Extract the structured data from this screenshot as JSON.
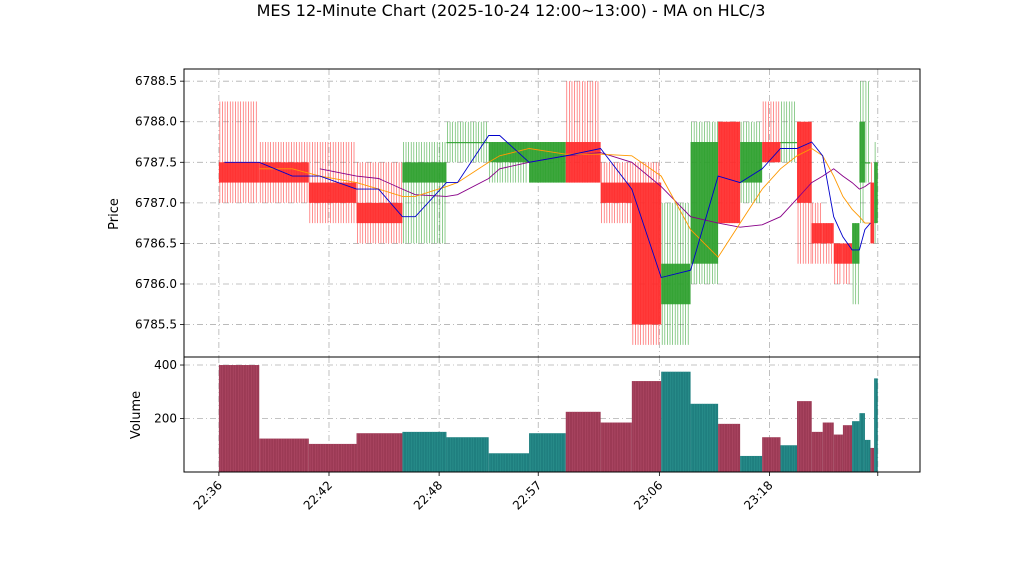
{
  "chart_data": [
    {
      "type": "candlestick",
      "title": "MES 12-Minute Chart (2025-10-24 12:00~13:00) - MA on HLC/3",
      "ylabel": "Price",
      "ylim": [
        6785.1,
        6788.65
      ],
      "yticks": [
        "6785.5",
        "6786.0",
        "6786.5",
        "6787.0",
        "6787.5",
        "6788.0",
        "6788.5"
      ],
      "grid": true,
      "colors": {
        "up": "#2ca02c",
        "down": "#ff2a2a",
        "ma_fast": "#0000cc",
        "ma_mid": "#ff9900",
        "ma_slow": "#880088"
      },
      "bars": [
        {
          "x": 0.0,
          "w": 2.2,
          "o": 6787.5,
          "h": 6788.25,
          "l": 6787.0,
          "c": 6787.25
        },
        {
          "x": 2.2,
          "w": 2.7,
          "o": 6787.5,
          "h": 6787.75,
          "l": 6787.0,
          "c": 6787.25
        },
        {
          "x": 4.9,
          "w": 2.6,
          "o": 6787.25,
          "h": 6787.75,
          "l": 6786.75,
          "c": 6787.0
        },
        {
          "x": 7.5,
          "w": 2.5,
          "o": 6787.0,
          "h": 6787.5,
          "l": 6786.5,
          "c": 6786.75
        },
        {
          "x": 10.0,
          "w": 2.4,
          "o": 6787.25,
          "h": 6787.75,
          "l": 6786.5,
          "c": 6787.5
        },
        {
          "x": 12.4,
          "w": 2.3,
          "o": 6787.75,
          "h": 6788.0,
          "l": 6787.5,
          "c": 6787.75
        },
        {
          "x": 14.7,
          "w": 2.2,
          "o": 6787.5,
          "h": 6787.75,
          "l": 6787.25,
          "c": 6787.75
        },
        {
          "x": 16.9,
          "w": 2.0,
          "o": 6787.25,
          "h": 6787.75,
          "l": 6787.25,
          "c": 6787.75
        },
        {
          "x": 18.9,
          "w": 1.9,
          "o": 6787.75,
          "h": 6788.5,
          "l": 6787.25,
          "c": 6787.25
        },
        {
          "x": 20.8,
          "w": 1.7,
          "o": 6787.25,
          "h": 6787.5,
          "l": 6786.75,
          "c": 6787.0
        },
        {
          "x": 22.5,
          "w": 1.6,
          "o": 6787.25,
          "h": 6787.5,
          "l": 6785.25,
          "c": 6785.5
        },
        {
          "x": 24.1,
          "w": 1.6,
          "o": 6785.75,
          "h": 6787.0,
          "l": 6785.25,
          "c": 6786.25
        },
        {
          "x": 25.7,
          "w": 1.5,
          "o": 6786.25,
          "h": 6788.0,
          "l": 6786.0,
          "c": 6787.75
        },
        {
          "x": 27.2,
          "w": 1.2,
          "o": 6788.0,
          "h": 6788.0,
          "l": 6786.75,
          "c": 6786.75
        },
        {
          "x": 28.4,
          "w": 1.2,
          "o": 6787.25,
          "h": 6788.0,
          "l": 6787.0,
          "c": 6787.75
        },
        {
          "x": 29.6,
          "w": 1.0,
          "o": 6787.75,
          "h": 6788.25,
          "l": 6787.5,
          "c": 6787.5
        },
        {
          "x": 30.6,
          "w": 0.9,
          "o": 6787.75,
          "h": 6788.25,
          "l": 6787.5,
          "c": 6787.75
        },
        {
          "x": 31.5,
          "w": 0.8,
          "o": 6788.0,
          "h": 6788.0,
          "l": 6786.25,
          "c": 6787.0
        },
        {
          "x": 32.3,
          "w": 0.6,
          "o": 6786.75,
          "h": 6787.0,
          "l": 6786.25,
          "c": 6786.5
        },
        {
          "x": 32.9,
          "w": 0.6,
          "o": 6786.75,
          "h": 6786.75,
          "l": 6786.25,
          "c": 6786.5
        },
        {
          "x": 33.5,
          "w": 0.5,
          "o": 6786.5,
          "h": 6786.5,
          "l": 6786.0,
          "c": 6786.25
        },
        {
          "x": 34.0,
          "w": 0.5,
          "o": 6786.5,
          "h": 6786.5,
          "l": 6786.0,
          "c": 6786.25
        },
        {
          "x": 34.5,
          "w": 0.4,
          "o": 6786.25,
          "h": 6786.75,
          "l": 6785.75,
          "c": 6786.75
        },
        {
          "x": 34.9,
          "w": 0.3,
          "o": 6787.25,
          "h": 6788.5,
          "l": 6786.75,
          "c": 6788.0
        },
        {
          "x": 35.2,
          "w": 0.3,
          "o": 6787.5,
          "h": 6788.5,
          "l": 6787.25,
          "c": 6787.5
        },
        {
          "x": 35.5,
          "w": 0.2,
          "o": 6787.25,
          "h": 6787.5,
          "l": 6786.5,
          "c": 6786.5
        },
        {
          "x": 35.7,
          "w": 0.2,
          "o": 6786.75,
          "h": 6787.75,
          "l": 6786.5,
          "c": 6787.5
        }
      ],
      "ma_fast": [
        [
          0.3,
          6787.5
        ],
        [
          2.2,
          6787.5
        ],
        [
          4.0,
          6787.33
        ],
        [
          5.5,
          6787.33
        ],
        [
          7.5,
          6787.17
        ],
        [
          8.7,
          6787.17
        ],
        [
          10.0,
          6786.83
        ],
        [
          10.7,
          6786.83
        ],
        [
          12.4,
          6787.25
        ],
        [
          13.0,
          6787.25
        ],
        [
          14.7,
          6787.83
        ],
        [
          15.3,
          6787.83
        ],
        [
          16.9,
          6787.5
        ],
        [
          18.9,
          6787.58
        ],
        [
          20.8,
          6787.67
        ],
        [
          22.5,
          6787.17
        ],
        [
          24.1,
          6786.08
        ],
        [
          25.7,
          6786.17
        ],
        [
          27.2,
          6787.33
        ],
        [
          28.4,
          6787.25
        ],
        [
          29.6,
          6787.42
        ],
        [
          30.6,
          6787.67
        ],
        [
          31.5,
          6787.67
        ],
        [
          32.3,
          6787.75
        ],
        [
          32.9,
          6787.58
        ],
        [
          33.5,
          6786.83
        ],
        [
          34.0,
          6786.58
        ],
        [
          34.5,
          6786.42
        ],
        [
          34.9,
          6786.42
        ],
        [
          35.2,
          6786.67
        ],
        [
          35.5,
          6786.75
        ]
      ],
      "ma_mid": [
        [
          2.2,
          6787.42
        ],
        [
          4.0,
          6787.42
        ],
        [
          5.5,
          6787.33
        ],
        [
          7.5,
          6787.25
        ],
        [
          8.7,
          6787.17
        ],
        [
          10.0,
          6787.08
        ],
        [
          10.7,
          6787.08
        ],
        [
          12.4,
          6787.2
        ],
        [
          13.0,
          6787.25
        ],
        [
          14.7,
          6787.5
        ],
        [
          15.3,
          6787.58
        ],
        [
          16.9,
          6787.67
        ],
        [
          18.9,
          6787.6
        ],
        [
          20.8,
          6787.6
        ],
        [
          22.5,
          6787.58
        ],
        [
          24.1,
          6787.33
        ],
        [
          25.7,
          6786.67
        ],
        [
          27.2,
          6786.33
        ],
        [
          28.4,
          6786.75
        ],
        [
          29.6,
          6787.17
        ],
        [
          30.6,
          6787.42
        ],
        [
          31.5,
          6787.58
        ],
        [
          32.3,
          6787.67
        ],
        [
          32.9,
          6787.58
        ],
        [
          33.5,
          6787.33
        ],
        [
          34.0,
          6787.08
        ],
        [
          34.5,
          6786.92
        ],
        [
          34.9,
          6786.83
        ],
        [
          35.2,
          6786.75
        ],
        [
          35.5,
          6786.75
        ]
      ],
      "ma_slow": [
        [
          5.5,
          6787.42
        ],
        [
          7.5,
          6787.33
        ],
        [
          8.7,
          6787.3
        ],
        [
          10.0,
          6787.17
        ],
        [
          10.7,
          6787.1
        ],
        [
          12.4,
          6787.08
        ],
        [
          13.0,
          6787.1
        ],
        [
          14.7,
          6787.3
        ],
        [
          15.3,
          6787.42
        ],
        [
          16.9,
          6787.5
        ],
        [
          18.9,
          6787.58
        ],
        [
          20.8,
          6787.62
        ],
        [
          22.5,
          6787.5
        ],
        [
          24.1,
          6787.2
        ],
        [
          25.7,
          6786.83
        ],
        [
          27.2,
          6786.75
        ],
        [
          28.4,
          6786.7
        ],
        [
          29.6,
          6786.73
        ],
        [
          30.6,
          6786.83
        ],
        [
          31.5,
          6787.05
        ],
        [
          32.3,
          6787.25
        ],
        [
          32.9,
          6787.33
        ],
        [
          33.5,
          6787.42
        ],
        [
          34.0,
          6787.33
        ],
        [
          34.5,
          6787.25
        ],
        [
          34.9,
          6787.17
        ],
        [
          35.2,
          6787.2
        ],
        [
          35.5,
          6787.25
        ]
      ]
    },
    {
      "type": "bar",
      "ylabel": "Volume",
      "ylim": [
        0,
        430
      ],
      "yticks": [
        "200",
        "400"
      ],
      "grid": true,
      "xlim": [
        -1.9,
        38.2
      ],
      "xticks": [
        {
          "pos": 0.0,
          "label": "22:36"
        },
        {
          "pos": 6.0,
          "label": "22:42"
        },
        {
          "pos": 12.0,
          "label": "22:48"
        },
        {
          "pos": 17.4,
          "label": "22:57"
        },
        {
          "pos": 24.0,
          "label": "23:06"
        },
        {
          "pos": 30.0,
          "label": "23:18"
        },
        {
          "pos": 35.9,
          "label": ""
        }
      ],
      "colors": {
        "up": "#1f7f7f",
        "down": "#9c3a55"
      },
      "values": [
        400,
        125,
        105,
        145,
        150,
        130,
        70,
        145,
        225,
        185,
        340,
        375,
        255,
        180,
        60,
        130,
        100,
        265,
        150,
        185,
        140,
        175,
        190,
        220,
        120,
        90,
        350
      ]
    }
  ]
}
